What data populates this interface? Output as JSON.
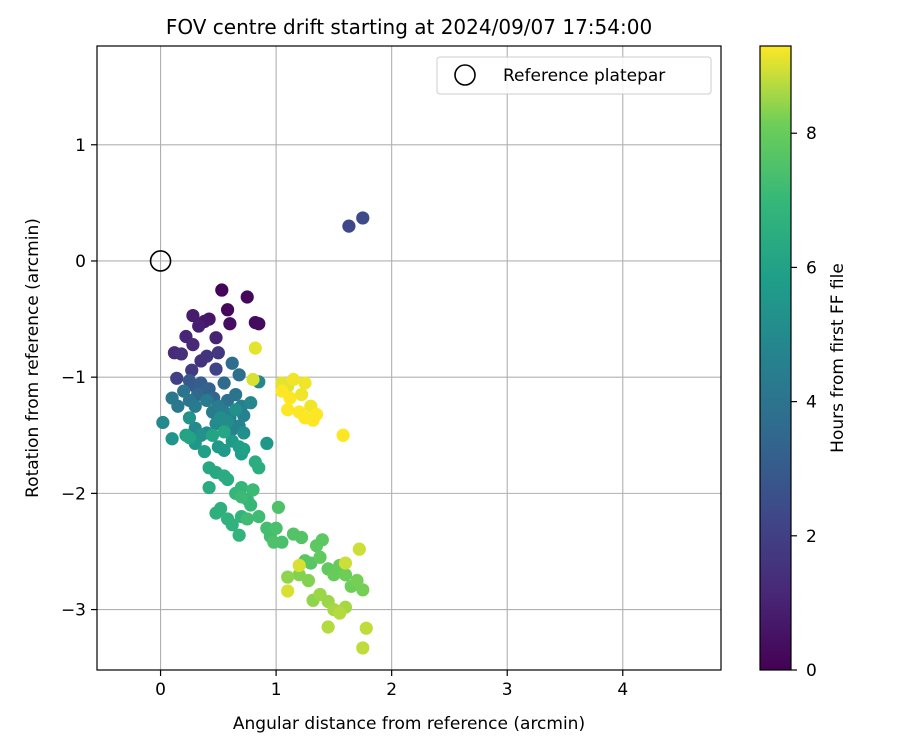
{
  "chart_data": {
    "type": "scatter",
    "title": "FOV centre drift starting at 2024/09/07 17:54:00",
    "xlabel": "Angular distance from reference (arcmin)",
    "ylabel": "Rotation from reference (arcmin)",
    "xlim": [
      -0.55,
      4.85
    ],
    "ylim": [
      -3.52,
      1.85
    ],
    "xticks": [
      0,
      1,
      2,
      3,
      4
    ],
    "yticks": [
      -3,
      -2,
      -1,
      0,
      1
    ],
    "grid": true,
    "legend": {
      "placement": "top-right",
      "entries": [
        "Reference platepar"
      ]
    },
    "reference_point": {
      "x": 0,
      "y": 0
    },
    "colorbar": {
      "label": "Hours from first FF file",
      "colormap": "viridis",
      "range": [
        0,
        9.3
      ],
      "ticks": [
        0,
        2,
        4,
        6,
        8
      ]
    },
    "points": [
      [
        0.53,
        -0.25,
        0.1
      ],
      [
        0.75,
        -0.31,
        0.2
      ],
      [
        0.58,
        -0.42,
        0.2
      ],
      [
        0.82,
        -0.53,
        0.3
      ],
      [
        0.85,
        -0.54,
        0.3
      ],
      [
        0.6,
        -0.54,
        0.4
      ],
      [
        0.42,
        -0.5,
        0.6
      ],
      [
        0.38,
        -0.52,
        0.7
      ],
      [
        0.28,
        -0.47,
        0.8
      ],
      [
        0.33,
        -0.56,
        0.9
      ],
      [
        0.48,
        -0.66,
        1.0
      ],
      [
        0.22,
        -0.65,
        1.1
      ],
      [
        0.28,
        -0.72,
        1.2
      ],
      [
        0.12,
        -0.79,
        1.3
      ],
      [
        0.18,
        -0.8,
        1.4
      ],
      [
        0.35,
        -0.86,
        1.5
      ],
      [
        0.4,
        -0.82,
        1.6
      ],
      [
        0.5,
        -0.79,
        1.7
      ],
      [
        0.27,
        -0.94,
        1.8
      ],
      [
        0.14,
        -1.01,
        2.0
      ],
      [
        0.48,
        -0.93,
        2.1
      ],
      [
        1.63,
        0.3,
        2.3
      ],
      [
        1.75,
        0.37,
        2.4
      ],
      [
        0.25,
        -1.03,
        2.9
      ],
      [
        0.3,
        -1.08,
        3.0
      ],
      [
        0.35,
        -1.05,
        3.1
      ],
      [
        0.38,
        -1.12,
        3.2
      ],
      [
        0.42,
        -1.1,
        3.3
      ],
      [
        0.46,
        -1.18,
        3.4
      ],
      [
        0.32,
        -1.15,
        3.5
      ],
      [
        0.55,
        -1.05,
        3.6
      ],
      [
        0.62,
        -0.88,
        3.7
      ],
      [
        0.68,
        -0.98,
        3.8
      ],
      [
        0.58,
        -1.2,
        3.9
      ],
      [
        0.65,
        -1.15,
        4.0
      ],
      [
        0.2,
        -1.12,
        4.0
      ],
      [
        0.25,
        -1.2,
        4.1
      ],
      [
        0.1,
        -1.18,
        4.2
      ],
      [
        0.15,
        -1.25,
        4.2
      ],
      [
        0.3,
        -1.25,
        4.3
      ],
      [
        0.4,
        -1.2,
        4.3
      ],
      [
        0.45,
        -1.3,
        4.4
      ],
      [
        0.5,
        -1.25,
        4.4
      ],
      [
        0.55,
        -1.3,
        4.5
      ],
      [
        0.6,
        -1.35,
        4.5
      ],
      [
        0.7,
        -1.25,
        4.6
      ],
      [
        0.72,
        -1.33,
        4.6
      ],
      [
        0.68,
        -1.42,
        4.7
      ],
      [
        0.62,
        -1.45,
        4.7
      ],
      [
        0.78,
        -1.22,
        4.8
      ],
      [
        0.85,
        -1.04,
        4.8
      ],
      [
        0.02,
        -1.39,
        4.9
      ],
      [
        0.3,
        -1.44,
        4.9
      ],
      [
        0.4,
        -1.48,
        5.0
      ],
      [
        0.48,
        -1.4,
        5.0
      ],
      [
        0.52,
        -1.35,
        5.1
      ],
      [
        0.58,
        -1.38,
        5.1
      ],
      [
        0.65,
        -1.28,
        5.2
      ],
      [
        0.72,
        -1.48,
        5.2
      ],
      [
        0.25,
        -1.35,
        5.3
      ],
      [
        0.35,
        -1.5,
        5.3
      ],
      [
        0.1,
        -1.53,
        5.4
      ],
      [
        0.3,
        -1.57,
        5.5
      ],
      [
        0.92,
        -1.57,
        5.5
      ],
      [
        0.5,
        -1.6,
        5.6
      ],
      [
        0.55,
        -1.63,
        5.7
      ],
      [
        0.62,
        -1.55,
        5.7
      ],
      [
        0.68,
        -1.6,
        5.8
      ],
      [
        0.7,
        -1.66,
        5.8
      ],
      [
        0.72,
        -1.62,
        5.9
      ],
      [
        0.38,
        -1.64,
        5.9
      ],
      [
        0.22,
        -1.5,
        6.0
      ],
      [
        0.25,
        -1.52,
        6.1
      ],
      [
        0.45,
        -1.5,
        6.1
      ],
      [
        0.55,
        -1.47,
        6.2
      ],
      [
        0.42,
        -1.78,
        6.3
      ],
      [
        0.48,
        -1.82,
        6.3
      ],
      [
        0.55,
        -1.85,
        6.4
      ],
      [
        0.58,
        -1.88,
        6.4
      ],
      [
        0.42,
        -1.95,
        6.4
      ],
      [
        0.85,
        -1.78,
        6.5
      ],
      [
        0.82,
        -1.73,
        6.5
      ],
      [
        0.52,
        -2.13,
        6.6
      ],
      [
        0.48,
        -2.17,
        6.6
      ],
      [
        0.58,
        -2.22,
        6.7
      ],
      [
        0.62,
        -2.27,
        6.7
      ],
      [
        0.7,
        -2.2,
        6.8
      ],
      [
        0.68,
        -2.36,
        6.8
      ],
      [
        0.65,
        -2.0,
        6.9
      ],
      [
        0.7,
        -1.95,
        6.9
      ],
      [
        0.75,
        -2.05,
        7.0
      ],
      [
        0.78,
        -2.1,
        7.0
      ],
      [
        0.8,
        -1.97,
        7.1
      ],
      [
        0.7,
        -2.03,
        7.1
      ],
      [
        0.75,
        -2.22,
        7.2
      ],
      [
        0.85,
        -2.2,
        7.2
      ],
      [
        0.92,
        -2.3,
        7.3
      ],
      [
        0.95,
        -2.37,
        7.3
      ],
      [
        1.0,
        -2.3,
        7.4
      ],
      [
        1.05,
        -2.42,
        7.4
      ],
      [
        0.98,
        -2.42,
        7.5
      ],
      [
        1.02,
        -2.12,
        7.5
      ],
      [
        1.15,
        -2.35,
        7.6
      ],
      [
        1.22,
        -2.38,
        7.6
      ],
      [
        1.25,
        -2.58,
        7.7
      ],
      [
        1.3,
        -2.6,
        7.7
      ],
      [
        1.35,
        -2.45,
        7.8
      ],
      [
        1.4,
        -2.4,
        7.8
      ],
      [
        1.38,
        -2.55,
        7.9
      ],
      [
        1.45,
        -2.65,
        7.9
      ],
      [
        1.5,
        -2.7,
        8.0
      ],
      [
        1.55,
        -2.62,
        8.0
      ],
      [
        1.6,
        -2.7,
        8.1
      ],
      [
        1.65,
        -2.8,
        8.1
      ],
      [
        1.7,
        -2.75,
        8.2
      ],
      [
        1.75,
        -2.83,
        8.2
      ],
      [
        1.28,
        -2.75,
        8.3
      ],
      [
        1.2,
        -2.7,
        8.3
      ],
      [
        1.1,
        -2.72,
        8.4
      ],
      [
        1.32,
        -2.92,
        8.4
      ],
      [
        1.38,
        -2.87,
        8.5
      ],
      [
        1.45,
        -2.93,
        8.5
      ],
      [
        1.5,
        -3.0,
        8.6
      ],
      [
        1.6,
        -2.98,
        8.6
      ],
      [
        1.45,
        -3.15,
        8.7
      ],
      [
        1.55,
        -3.03,
        8.7
      ],
      [
        1.78,
        -3.16,
        8.8
      ],
      [
        1.75,
        -3.33,
        8.8
      ],
      [
        1.72,
        -2.48,
        8.9
      ],
      [
        1.6,
        -2.6,
        8.9
      ],
      [
        1.1,
        -2.84,
        9.0
      ],
      [
        1.2,
        -2.62,
        9.0
      ],
      [
        0.82,
        -0.75,
        9.1
      ],
      [
        0.8,
        -1.02,
        9.0
      ],
      [
        1.05,
        -1.05,
        9.1
      ],
      [
        1.1,
        -1.08,
        9.1
      ],
      [
        1.15,
        -1.02,
        9.2
      ],
      [
        1.25,
        -1.05,
        9.2
      ],
      [
        1.05,
        -1.12,
        9.3
      ],
      [
        1.12,
        -1.18,
        9.3
      ],
      [
        1.22,
        -1.15,
        9.2
      ],
      [
        1.3,
        -1.25,
        9.2
      ],
      [
        1.2,
        -1.3,
        9.3
      ],
      [
        1.1,
        -1.28,
        9.3
      ],
      [
        1.25,
        -1.35,
        9.3
      ],
      [
        1.35,
        -1.32,
        9.3
      ],
      [
        1.32,
        -1.37,
        9.3
      ],
      [
        1.58,
        -1.5,
        9.3
      ]
    ]
  }
}
